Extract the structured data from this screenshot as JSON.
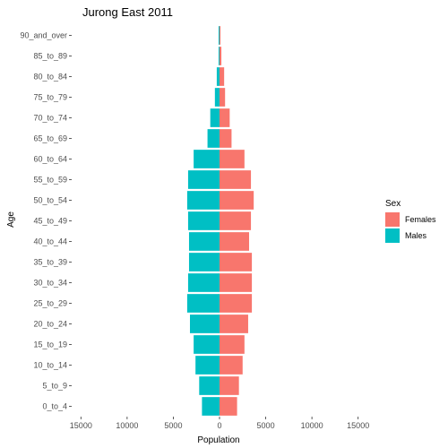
{
  "chart_data": {
    "type": "bar",
    "orientation": "horizontal",
    "layout": "population-pyramid",
    "title": "Jurong East  2011",
    "xlabel": "Population",
    "ylabel": "Age",
    "xlim": [
      -16000,
      16000
    ],
    "x_ticks": [
      -15000,
      -10000,
      -5000,
      0,
      5000,
      10000,
      15000
    ],
    "x_tick_labels": [
      "15000",
      "10000",
      "5000",
      "0",
      "5000",
      "10000",
      "15000"
    ],
    "categories": [
      "0_to_4",
      "5_to_9",
      "10_to_14",
      "15_to_19",
      "20_to_24",
      "25_to_29",
      "30_to_34",
      "35_to_39",
      "40_to_44",
      "45_to_49",
      "50_to_54",
      "55_to_59",
      "60_to_64",
      "65_to_69",
      "70_to_74",
      "75_to_79",
      "80_to_84",
      "85_to_89",
      "90_and_over"
    ],
    "series": [
      {
        "name": "Females",
        "color": "#F8766D",
        "side": "right",
        "values": [
          1900,
          2100,
          2500,
          2700,
          3100,
          3500,
          3500,
          3500,
          3200,
          3400,
          3700,
          3400,
          2700,
          1300,
          1100,
          600,
          500,
          200,
          100
        ]
      },
      {
        "name": "Males",
        "color": "#00BFC4",
        "side": "left",
        "values": [
          1900,
          2200,
          2600,
          2800,
          3200,
          3500,
          3400,
          3300,
          3300,
          3400,
          3500,
          3400,
          2800,
          1300,
          1000,
          500,
          300,
          100,
          100
        ]
      }
    ],
    "grid": false,
    "legend": {
      "title": "Sex",
      "placement": "right",
      "entries": [
        {
          "label": "Females",
          "color": "#F8766D"
        },
        {
          "label": "Males",
          "color": "#00BFC4"
        }
      ]
    }
  }
}
